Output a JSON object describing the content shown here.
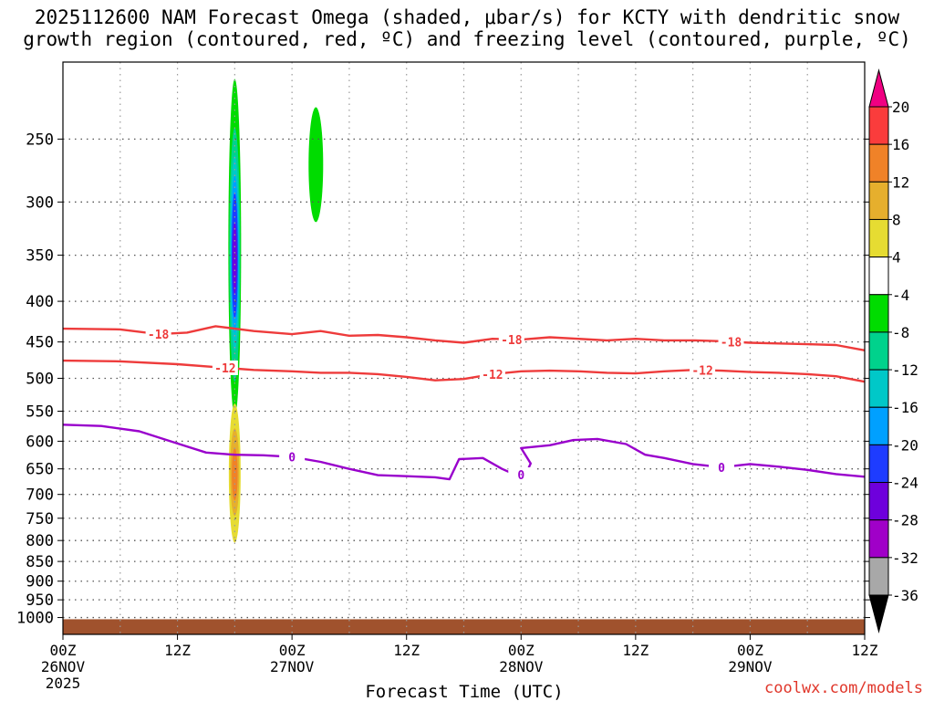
{
  "title": {
    "line1": "2025112600 NAM Forecast Omega (shaded, μbar/s) for KCTY with dendritic snow",
    "line2": "growth region (contoured, red, ºC) and freezing level (contoured, purple, ºC)"
  },
  "credit": "coolwx.com/models",
  "chart_data": {
    "type": "time-pressure cross section",
    "xlabel": "Forecast Time (UTC)",
    "ylabel": "",
    "x_range_hours": [
      0,
      84
    ],
    "y_range_hPa": [
      200,
      1050
    ],
    "y_scale": "log",
    "grid": true,
    "x_ticks": [
      {
        "hour": 0,
        "label": "00Z",
        "date": "26NOV",
        "year": "2025"
      },
      {
        "hour": 12,
        "label": "12Z"
      },
      {
        "hour": 24,
        "label": "00Z",
        "date": "27NOV"
      },
      {
        "hour": 36,
        "label": "12Z"
      },
      {
        "hour": 48,
        "label": "00Z",
        "date": "28NOV"
      },
      {
        "hour": 60,
        "label": "12Z"
      },
      {
        "hour": 72,
        "label": "00Z",
        "date": "29NOV"
      },
      {
        "hour": 84,
        "label": "12Z"
      }
    ],
    "y_ticks": [
      {
        "value": 250,
        "label": "250"
      },
      {
        "value": 300,
        "label": "300"
      },
      {
        "value": 350,
        "label": "350"
      },
      {
        "value": 400,
        "label": "400"
      },
      {
        "value": 450,
        "label": "450"
      },
      {
        "value": 500,
        "label": "500"
      },
      {
        "value": 550,
        "label": "550"
      },
      {
        "value": 600,
        "label": "600"
      },
      {
        "value": 650,
        "label": "650"
      },
      {
        "value": 700,
        "label": "700"
      },
      {
        "value": 750,
        "label": "750"
      },
      {
        "value": 800,
        "label": "800"
      },
      {
        "value": 850,
        "label": "850"
      },
      {
        "value": 900,
        "label": "900"
      },
      {
        "value": 950,
        "label": "950"
      },
      {
        "value": 1000,
        "label": "1000"
      }
    ],
    "colorbar": {
      "units": "μbar/s",
      "bins": [
        {
          "range": "<-36",
          "color": "#000000"
        },
        {
          "range": "-36 to -32",
          "color": "#a8a8a8"
        },
        {
          "range": "-32 to -28",
          "color": "#a000c8"
        },
        {
          "range": "-28 to -24",
          "color": "#6e00dc"
        },
        {
          "range": "-24 to -20",
          "color": "#1e3cff"
        },
        {
          "range": "-20 to -16",
          "color": "#00a0ff"
        },
        {
          "range": "-16 to -12",
          "color": "#00c8c8"
        },
        {
          "range": "-12 to -8",
          "color": "#00d28c"
        },
        {
          "range": "-8 to -4",
          "color": "#00dc00"
        },
        {
          "range": "-4 to 4",
          "color": "#ffffff"
        },
        {
          "range": "4 to 8",
          "color": "#e6dc32"
        },
        {
          "range": "8 to 12",
          "color": "#e6af2d"
        },
        {
          "range": "12 to 16",
          "color": "#f08228"
        },
        {
          "range": "16 to 20",
          "color": "#fa3c3c"
        },
        {
          "range": ">20",
          "color": "#f00082"
        }
      ],
      "labels": [
        "20",
        "16",
        "12",
        "8",
        "4",
        "-4",
        "-8",
        "-12",
        "-16",
        "-20",
        "-24",
        "-28",
        "-32",
        "-36"
      ]
    },
    "contours": [
      {
        "name": "-18",
        "color": "#ee3b3b",
        "labels": [
          {
            "hour": 10,
            "value": "-18"
          },
          {
            "hour": 47,
            "value": "-18"
          },
          {
            "hour": 70,
            "value": "-18"
          }
        ],
        "points": [
          [
            0,
            433
          ],
          [
            6,
            434
          ],
          [
            10,
            440
          ],
          [
            13,
            438
          ],
          [
            16,
            430
          ],
          [
            20,
            436
          ],
          [
            24,
            440
          ],
          [
            27,
            436
          ],
          [
            30,
            442
          ],
          [
            33,
            441
          ],
          [
            36,
            444
          ],
          [
            39,
            448
          ],
          [
            42,
            451
          ],
          [
            45,
            446
          ],
          [
            48,
            447
          ],
          [
            51,
            444
          ],
          [
            54,
            446
          ],
          [
            57,
            448
          ],
          [
            60,
            446
          ],
          [
            63,
            448
          ],
          [
            66,
            448
          ],
          [
            69,
            449
          ],
          [
            72,
            451
          ],
          [
            75,
            452
          ],
          [
            78,
            453
          ],
          [
            81,
            454
          ],
          [
            84,
            461
          ]
        ]
      },
      {
        "name": "-12",
        "color": "#ee3b3b",
        "labels": [
          {
            "hour": 17,
            "value": "-12"
          },
          {
            "hour": 45,
            "value": "-12"
          },
          {
            "hour": 67,
            "value": "-12"
          }
        ],
        "points": [
          [
            0,
            475
          ],
          [
            6,
            476
          ],
          [
            12,
            480
          ],
          [
            16,
            484
          ],
          [
            20,
            488
          ],
          [
            24,
            490
          ],
          [
            27,
            492
          ],
          [
            30,
            492
          ],
          [
            33,
            494
          ],
          [
            36,
            498
          ],
          [
            39,
            503
          ],
          [
            42,
            501
          ],
          [
            45,
            494
          ],
          [
            48,
            490
          ],
          [
            51,
            489
          ],
          [
            54,
            490
          ],
          [
            57,
            492
          ],
          [
            60,
            493
          ],
          [
            63,
            490
          ],
          [
            66,
            488
          ],
          [
            69,
            489
          ],
          [
            72,
            491
          ],
          [
            75,
            492
          ],
          [
            78,
            494
          ],
          [
            81,
            497
          ],
          [
            84,
            505
          ]
        ]
      },
      {
        "name": "0",
        "color": "#9900cc",
        "labels": [
          {
            "hour": 24,
            "value": "0"
          },
          {
            "hour": 48,
            "value": "0"
          },
          {
            "hour": 69,
            "value": "0"
          }
        ],
        "points": [
          [
            0,
            572
          ],
          [
            4,
            574
          ],
          [
            8,
            583
          ],
          [
            12,
            604
          ],
          [
            15,
            620
          ],
          [
            18,
            624
          ],
          [
            21,
            625
          ],
          [
            24,
            628
          ],
          [
            27,
            637
          ],
          [
            30,
            650
          ],
          [
            33,
            662
          ],
          [
            36,
            664
          ],
          [
            39,
            666
          ],
          [
            40.5,
            670
          ],
          [
            41.5,
            632
          ],
          [
            44,
            630
          ],
          [
            46,
            650
          ],
          [
            47.5,
            662
          ],
          [
            48.5,
            660
          ],
          [
            49,
            640
          ],
          [
            48,
            612
          ],
          [
            51,
            607
          ],
          [
            53.5,
            598
          ],
          [
            56,
            596
          ],
          [
            59,
            605
          ],
          [
            61,
            624
          ],
          [
            63,
            630
          ],
          [
            66,
            641
          ],
          [
            69,
            647
          ],
          [
            72,
            641
          ],
          [
            75,
            646
          ],
          [
            78,
            652
          ],
          [
            81,
            660
          ],
          [
            84,
            665
          ]
        ]
      }
    ],
    "omega_shaded": [
      {
        "hour": 18,
        "p_top": 210,
        "p_bottom": 558,
        "value_range": "-8 to -4",
        "color": "#00dc00"
      },
      {
        "hour": 18,
        "p_top": 242,
        "p_bottom": 505,
        "value_range": "-12 to -8",
        "color": "#00d28c"
      },
      {
        "hour": 18,
        "p_top": 262,
        "p_bottom": 462,
        "value_range": "-16 to -12",
        "color": "#00c8c8"
      },
      {
        "hour": 18,
        "p_top": 278,
        "p_bottom": 438,
        "value_range": "-20 to -16",
        "color": "#00a0ff"
      },
      {
        "hour": 18,
        "p_top": 292,
        "p_bottom": 420,
        "value_range": "-24 to -20",
        "color": "#1e3cff"
      },
      {
        "hour": 18,
        "p_top": 318,
        "p_bottom": 392,
        "value_range": "-28 to -24",
        "color": "#6e00dc"
      },
      {
        "hour": 26.5,
        "p_top": 228,
        "p_bottom": 318,
        "value_range": "-8 to -4",
        "color": "#00dc00"
      },
      {
        "hour": 18,
        "p_top": 538,
        "p_bottom": 805,
        "value_range": "4 to 8",
        "color": "#e6dc32"
      },
      {
        "hour": 18,
        "p_top": 578,
        "p_bottom": 745,
        "value_range": "8 to 12",
        "color": "#e6af2d"
      },
      {
        "hour": 18,
        "p_top": 612,
        "p_bottom": 712,
        "value_range": "12 to 16",
        "color": "#f08228"
      }
    ],
    "terrain": {
      "color": "#a0522d",
      "top_pressure_hPa": 1005
    }
  }
}
